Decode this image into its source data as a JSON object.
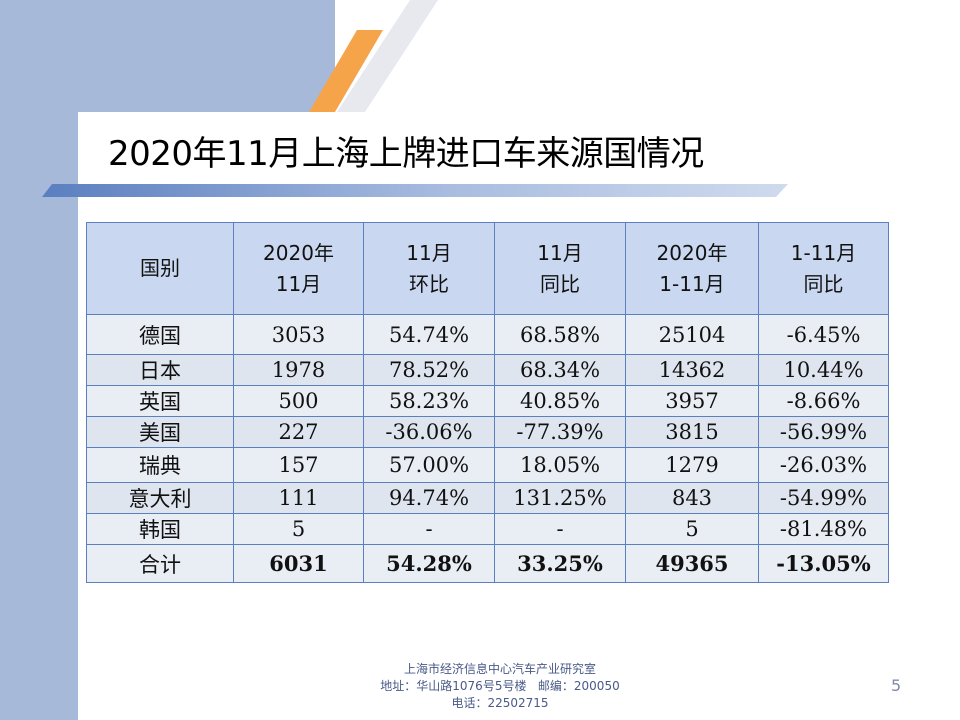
{
  "title": "2020年11月上海上牌进口车来源国情况",
  "colors": {
    "band": "#a7b9d9",
    "accent_orange": "#f5a44a",
    "header_bg": "#c9d8f0",
    "grid": "#5b7fc0"
  },
  "table": {
    "headers": [
      [
        "国别"
      ],
      [
        "2020年",
        "11月"
      ],
      [
        "11月",
        "环比"
      ],
      [
        "11月",
        "同比"
      ],
      [
        "2020年",
        "1-11月"
      ],
      [
        "1-11月",
        "同比"
      ]
    ],
    "rows": [
      [
        "德国",
        "3053",
        "54.74%",
        "68.58%",
        "25104",
        "-6.45%"
      ],
      [
        "日本",
        "1978",
        "78.52%",
        "68.34%",
        "14362",
        "10.44%"
      ],
      [
        "英国",
        "500",
        "58.23%",
        "40.85%",
        "3957",
        "-8.66%"
      ],
      [
        "美国",
        "227",
        "-36.06%",
        "-77.39%",
        "3815",
        "-56.99%"
      ],
      [
        "瑞典",
        "157",
        "57.00%",
        "18.05%",
        "1279",
        "-26.03%"
      ],
      [
        "意大利",
        "111",
        "94.74%",
        "131.25%",
        "843",
        "-54.99%"
      ],
      [
        "韩国",
        "5",
        "-",
        "-",
        "5",
        "-81.48%"
      ]
    ],
    "total": [
      "合计",
      "6031",
      "54.28%",
      "33.25%",
      "49365",
      "-13.05%"
    ]
  },
  "footer": {
    "line1": "上海市经济信息中心汽车产业研究室",
    "line2": "地址：华山路1076号5号楼   邮编：200050",
    "line3": "电话：22502715"
  },
  "page_number": "5"
}
